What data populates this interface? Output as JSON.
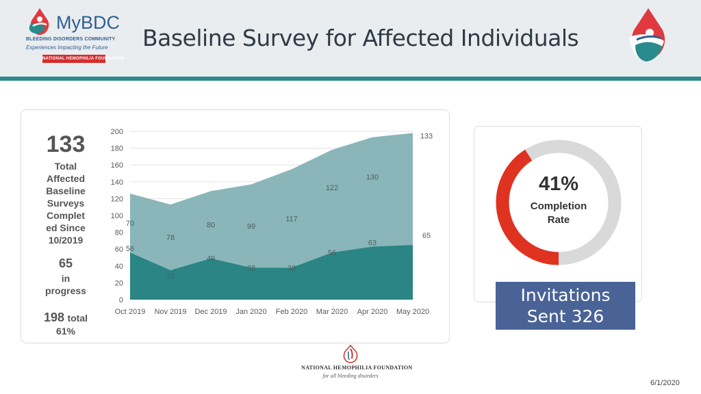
{
  "header": {
    "title": "Baseline Survey for Affected Individuals",
    "logo_left": {
      "brand_my": "My",
      "brand_bdc": "BDC",
      "subtitle": "BLEEDING DISORDERS COMMUNITY",
      "tagline": "Experiences Impacting the Future",
      "badge": "NATIONAL HEMOPHILIA FOUNDATION"
    }
  },
  "stats": {
    "completed_count": "133",
    "completed_label": [
      "Total",
      "Affected",
      "Baseline",
      "Surveys",
      "Complet",
      "ed Since",
      "10/2019"
    ],
    "in_progress_count": "65",
    "in_progress_label": [
      "in",
      "progress"
    ],
    "total_count": "198",
    "total_word": "total",
    "total_pct": "61%"
  },
  "chart_data": {
    "type": "area",
    "stacked": true,
    "categories": [
      "Oct 2019",
      "Nov 2019",
      "Dec 2019",
      "Jan 2020",
      "Feb 2020",
      "Mar 2020",
      "Apr 2020",
      "May 2020"
    ],
    "series": [
      {
        "values": [
          56,
          35,
          49,
          38,
          38,
          56,
          63,
          65
        ],
        "color": "#2a8584"
      },
      {
        "values": [
          70,
          78,
          80,
          99,
          117,
          122,
          130,
          133
        ],
        "color": "#8ab6b9"
      }
    ],
    "ylim": [
      0,
      200
    ],
    "yticks": [
      0,
      20,
      40,
      60,
      80,
      100,
      120,
      140,
      160,
      180,
      200
    ],
    "grid": true,
    "legend": "none"
  },
  "completion": {
    "percent": 41,
    "percent_label": "41%",
    "label": "Completion Rate",
    "color_done": "#e03221",
    "color_rest": "#d9d9d9"
  },
  "invitations": {
    "line1": "Invitations",
    "line2": "Sent 326"
  },
  "footer": {
    "org_name": "NATIONAL HEMOPHILIA FOUNDATION",
    "org_tagline": "for all bleeding disorders",
    "date": "6/1/2020"
  }
}
